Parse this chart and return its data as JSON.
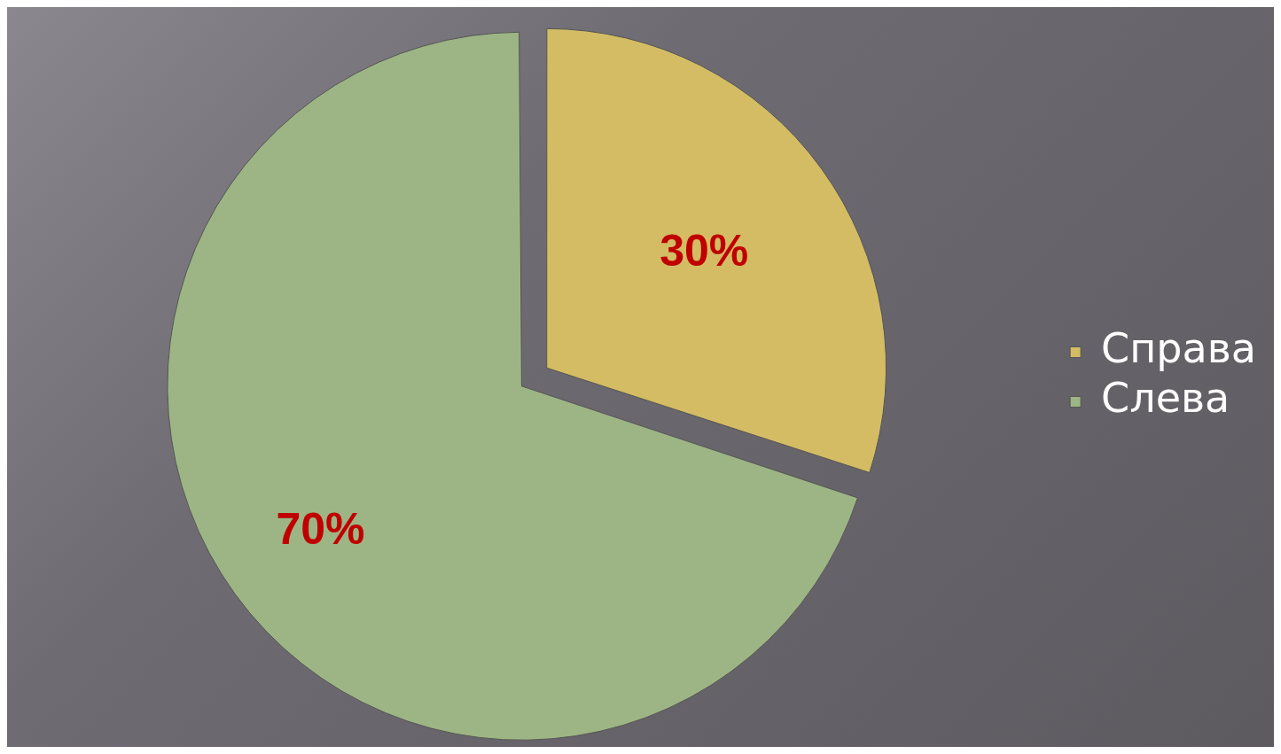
{
  "chart_data": {
    "type": "pie",
    "categories": [
      "Справа",
      "Слева"
    ],
    "values": [
      30,
      70
    ],
    "colors": [
      "#d4bc64",
      "#9db584"
    ],
    "value_labels": [
      "30%",
      "70%"
    ],
    "legend": "right"
  }
}
